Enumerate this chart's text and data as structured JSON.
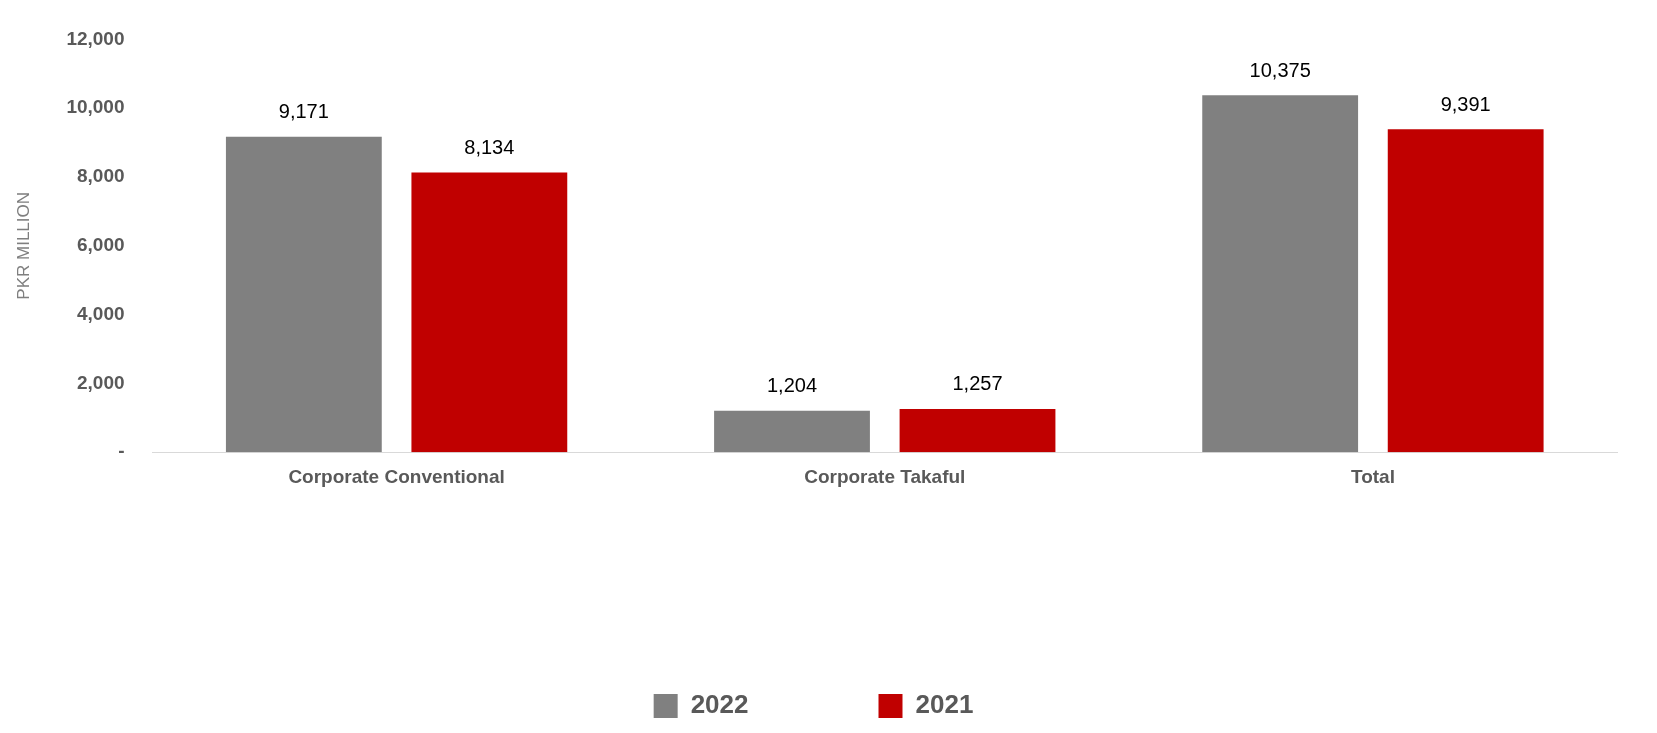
{
  "chart_data": {
    "type": "bar",
    "ylabel": "PKR MILLION",
    "categories": [
      "Corporate Conventional",
      "Corporate Takaful",
      "Total"
    ],
    "series": [
      {
        "name": "2022",
        "color": "#808080",
        "values": [
          9171,
          1204,
          10375
        ],
        "value_labels": [
          "9,171",
          "1,204",
          "10,375"
        ]
      },
      {
        "name": "2021",
        "color": "#c00000",
        "values": [
          8134,
          1257,
          9391
        ],
        "value_labels": [
          "8,134",
          "1,257",
          "9,391"
        ]
      }
    ],
    "ylim": [
      0,
      12000
    ],
    "yticks": [
      {
        "value": 0,
        "label": "-"
      },
      {
        "value": 2000,
        "label": "2,000"
      },
      {
        "value": 4000,
        "label": "4,000"
      },
      {
        "value": 6000,
        "label": "6,000"
      },
      {
        "value": 8000,
        "label": "8,000"
      },
      {
        "value": 10000,
        "label": "10,000"
      },
      {
        "value": 12000,
        "label": "12,000"
      }
    ],
    "grid": false,
    "legend": "bottom"
  }
}
